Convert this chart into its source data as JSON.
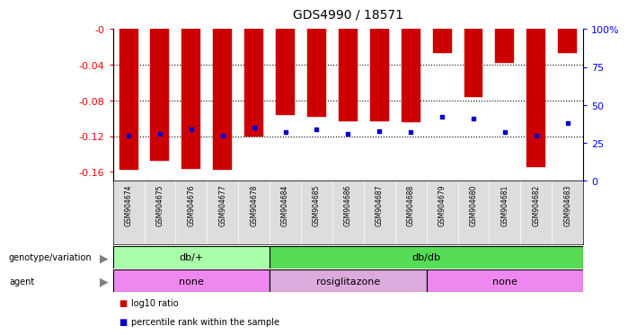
{
  "title": "GDS4990 / 18571",
  "samples": [
    "GSM904674",
    "GSM904675",
    "GSM904676",
    "GSM904677",
    "GSM904678",
    "GSM904684",
    "GSM904685",
    "GSM904686",
    "GSM904687",
    "GSM904688",
    "GSM904679",
    "GSM904680",
    "GSM904681",
    "GSM904682",
    "GSM904683"
  ],
  "log10_ratio": [
    -0.158,
    -0.148,
    -0.157,
    -0.158,
    -0.12,
    -0.096,
    -0.098,
    -0.103,
    -0.103,
    -0.104,
    -0.027,
    -0.076,
    -0.038,
    -0.155,
    -0.027
  ],
  "percentile_rank": [
    30,
    31,
    34,
    30,
    35,
    32,
    34,
    31,
    33,
    32,
    42,
    41,
    32,
    30,
    38
  ],
  "bar_color": "#cc0000",
  "dot_color": "#0000cc",
  "ylim_left": [
    -0.17,
    0.0
  ],
  "ylim_right": [
    0,
    100
  ],
  "yticks_left": [
    0.0,
    -0.04,
    -0.08,
    -0.12,
    -0.16
  ],
  "ytick_labels_left": [
    "-0",
    "-0.04",
    "-0.08",
    "-0.12",
    "-0.16"
  ],
  "yticks_right": [
    100,
    75,
    50,
    25,
    0
  ],
  "ytick_labels_right": [
    "100%",
    "75",
    "50",
    "25",
    "0"
  ],
  "genotype_groups": [
    {
      "label": "db/+",
      "start": 0,
      "end": 5,
      "color": "#aaffaa"
    },
    {
      "label": "db/db",
      "start": 5,
      "end": 15,
      "color": "#55dd55"
    }
  ],
  "agent_groups": [
    {
      "label": "none",
      "start": 0,
      "end": 5,
      "color": "#ee88ee"
    },
    {
      "label": "rosiglitazone",
      "start": 5,
      "end": 10,
      "color": "#ddaadd"
    },
    {
      "label": "none",
      "start": 10,
      "end": 15,
      "color": "#ee88ee"
    }
  ],
  "legend_items": [
    {
      "color": "#cc0000",
      "label": "log10 ratio"
    },
    {
      "color": "#0000cc",
      "label": "percentile rank within the sample"
    }
  ],
  "background_color": "#ffffff",
  "plot_bg_color": "#ffffff",
  "tick_bg_color": "#dddddd"
}
